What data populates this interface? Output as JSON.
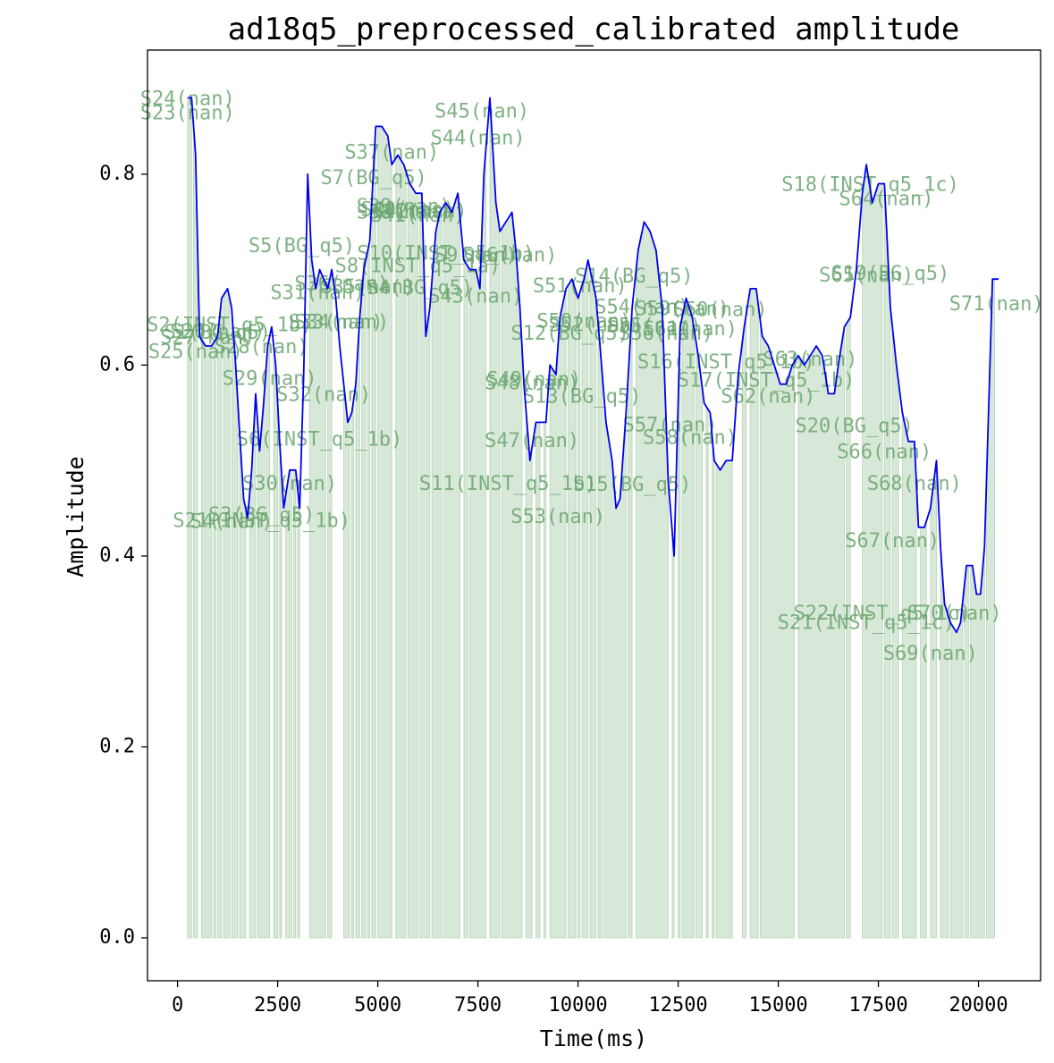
{
  "chart_data": {
    "type": "line",
    "title": "ad18q5_preprocessed_calibrated amplitude",
    "xlabel": "Time(ms)",
    "ylabel": "Amplitude",
    "xlim": [
      -750,
      21550
    ],
    "ylim": [
      -0.045,
      0.93
    ],
    "x_ticks": [
      0,
      2500,
      5000,
      7500,
      10000,
      12500,
      15000,
      17500,
      20000
    ],
    "y_ticks": [
      0.0,
      0.2,
      0.4,
      0.6,
      0.8
    ],
    "y_tick_labels": [
      "0.0",
      "0.2",
      "0.4",
      "0.6",
      "0.8"
    ],
    "grid": false,
    "colors": {
      "line": "#0000ee",
      "segment_fill": "#8fbc8f",
      "segment_label": "#6aa56e"
    },
    "series": [
      {
        "points": [
          [
            250,
            0.88
          ],
          [
            350,
            0.88
          ],
          [
            450,
            0.82
          ],
          [
            550,
            0.63
          ],
          [
            700,
            0.62
          ],
          [
            850,
            0.62
          ],
          [
            1000,
            0.63
          ],
          [
            1100,
            0.67
          ],
          [
            1250,
            0.68
          ],
          [
            1350,
            0.66
          ],
          [
            1450,
            0.6
          ],
          [
            1550,
            0.53
          ],
          [
            1650,
            0.46
          ],
          [
            1750,
            0.44
          ],
          [
            1850,
            0.49
          ],
          [
            1950,
            0.57
          ],
          [
            2050,
            0.51
          ],
          [
            2150,
            0.56
          ],
          [
            2250,
            0.62
          ],
          [
            2350,
            0.64
          ],
          [
            2450,
            0.6
          ],
          [
            2550,
            0.52
          ],
          [
            2650,
            0.45
          ],
          [
            2800,
            0.49
          ],
          [
            2950,
            0.49
          ],
          [
            3050,
            0.45
          ],
          [
            3150,
            0.59
          ],
          [
            3250,
            0.8
          ],
          [
            3350,
            0.71
          ],
          [
            3450,
            0.68
          ],
          [
            3550,
            0.7
          ],
          [
            3650,
            0.69
          ],
          [
            3750,
            0.68
          ],
          [
            3850,
            0.7
          ],
          [
            3950,
            0.67
          ],
          [
            4050,
            0.62
          ],
          [
            4150,
            0.58
          ],
          [
            4250,
            0.54
          ],
          [
            4350,
            0.55
          ],
          [
            4450,
            0.58
          ],
          [
            4550,
            0.65
          ],
          [
            4650,
            0.7
          ],
          [
            4800,
            0.73
          ],
          [
            4950,
            0.85
          ],
          [
            5100,
            0.85
          ],
          [
            5250,
            0.84
          ],
          [
            5350,
            0.81
          ],
          [
            5500,
            0.82
          ],
          [
            5650,
            0.81
          ],
          [
            5800,
            0.79
          ],
          [
            5950,
            0.78
          ],
          [
            6100,
            0.78
          ],
          [
            6200,
            0.63
          ],
          [
            6300,
            0.66
          ],
          [
            6450,
            0.74
          ],
          [
            6550,
            0.76
          ],
          [
            6700,
            0.77
          ],
          [
            6850,
            0.76
          ],
          [
            7000,
            0.78
          ],
          [
            7150,
            0.71
          ],
          [
            7300,
            0.7
          ],
          [
            7450,
            0.7
          ],
          [
            7550,
            0.68
          ],
          [
            7650,
            0.8
          ],
          [
            7800,
            0.88
          ],
          [
            7950,
            0.77
          ],
          [
            8050,
            0.74
          ],
          [
            8200,
            0.75
          ],
          [
            8350,
            0.76
          ],
          [
            8450,
            0.72
          ],
          [
            8550,
            0.66
          ],
          [
            8650,
            0.58
          ],
          [
            8800,
            0.5
          ],
          [
            8950,
            0.54
          ],
          [
            9100,
            0.54
          ],
          [
            9200,
            0.54
          ],
          [
            9300,
            0.6
          ],
          [
            9450,
            0.59
          ],
          [
            9550,
            0.65
          ],
          [
            9700,
            0.68
          ],
          [
            9850,
            0.69
          ],
          [
            10000,
            0.67
          ],
          [
            10150,
            0.69
          ],
          [
            10250,
            0.71
          ],
          [
            10350,
            0.69
          ],
          [
            10450,
            0.67
          ],
          [
            10550,
            0.62
          ],
          [
            10700,
            0.54
          ],
          [
            10850,
            0.5
          ],
          [
            10950,
            0.45
          ],
          [
            11050,
            0.46
          ],
          [
            11200,
            0.55
          ],
          [
            11350,
            0.66
          ],
          [
            11500,
            0.72
          ],
          [
            11650,
            0.75
          ],
          [
            11800,
            0.74
          ],
          [
            11950,
            0.72
          ],
          [
            12100,
            0.66
          ],
          [
            12250,
            0.48
          ],
          [
            12400,
            0.4
          ],
          [
            12550,
            0.64
          ],
          [
            12700,
            0.67
          ],
          [
            12850,
            0.65
          ],
          [
            13000,
            0.61
          ],
          [
            13150,
            0.56
          ],
          [
            13300,
            0.55
          ],
          [
            13400,
            0.5
          ],
          [
            13550,
            0.49
          ],
          [
            13700,
            0.5
          ],
          [
            13850,
            0.5
          ],
          [
            14000,
            0.59
          ],
          [
            14150,
            0.64
          ],
          [
            14300,
            0.68
          ],
          [
            14450,
            0.68
          ],
          [
            14600,
            0.63
          ],
          [
            14750,
            0.62
          ],
          [
            14900,
            0.6
          ],
          [
            15050,
            0.58
          ],
          [
            15200,
            0.58
          ],
          [
            15350,
            0.6
          ],
          [
            15500,
            0.61
          ],
          [
            15650,
            0.6
          ],
          [
            15800,
            0.61
          ],
          [
            15950,
            0.62
          ],
          [
            16100,
            0.61
          ],
          [
            16250,
            0.57
          ],
          [
            16400,
            0.57
          ],
          [
            16500,
            0.6
          ],
          [
            16650,
            0.64
          ],
          [
            16800,
            0.65
          ],
          [
            16950,
            0.7
          ],
          [
            17100,
            0.78
          ],
          [
            17200,
            0.81
          ],
          [
            17350,
            0.77
          ],
          [
            17500,
            0.79
          ],
          [
            17650,
            0.79
          ],
          [
            17800,
            0.66
          ],
          [
            17950,
            0.6
          ],
          [
            18100,
            0.55
          ],
          [
            18250,
            0.52
          ],
          [
            18400,
            0.52
          ],
          [
            18500,
            0.43
          ],
          [
            18650,
            0.43
          ],
          [
            18800,
            0.45
          ],
          [
            18950,
            0.5
          ],
          [
            19050,
            0.41
          ],
          [
            19150,
            0.35
          ],
          [
            19300,
            0.33
          ],
          [
            19450,
            0.32
          ],
          [
            19550,
            0.33
          ],
          [
            19700,
            0.39
          ],
          [
            19850,
            0.39
          ],
          [
            19950,
            0.36
          ],
          [
            20050,
            0.36
          ],
          [
            20150,
            0.41
          ],
          [
            20350,
            0.69
          ],
          [
            20500,
            0.69
          ]
        ]
      }
    ],
    "segments": [
      [
        250,
        350
      ],
      [
        400,
        500
      ],
      [
        600,
        850
      ],
      [
        900,
        950
      ],
      [
        1000,
        1100
      ],
      [
        1150,
        1300
      ],
      [
        1350,
        1500
      ],
      [
        1550,
        1700
      ],
      [
        1800,
        1950
      ],
      [
        2000,
        2300
      ],
      [
        2400,
        2500
      ],
      [
        2550,
        2600
      ],
      [
        2700,
        2850
      ],
      [
        2900,
        2950
      ],
      [
        3000,
        3050
      ],
      [
        3300,
        3700
      ],
      [
        3750,
        3850
      ],
      [
        4150,
        4300
      ],
      [
        4350,
        4400
      ],
      [
        4450,
        4550
      ],
      [
        4600,
        4700
      ],
      [
        4750,
        4800
      ],
      [
        4850,
        4950
      ],
      [
        5000,
        5350
      ],
      [
        5450,
        5700
      ],
      [
        5750,
        6000
      ],
      [
        6050,
        6300
      ],
      [
        6350,
        6600
      ],
      [
        6650,
        7050
      ],
      [
        7150,
        7250
      ],
      [
        7300,
        7700
      ],
      [
        7800,
        8050
      ],
      [
        8100,
        8600
      ],
      [
        8700,
        8850
      ],
      [
        8950,
        9050
      ],
      [
        9150,
        9200
      ],
      [
        9300,
        9700
      ],
      [
        9750,
        9950
      ],
      [
        10000,
        10050
      ],
      [
        10100,
        10250
      ],
      [
        10300,
        10450
      ],
      [
        10500,
        10600
      ],
      [
        10650,
        11200
      ],
      [
        11250,
        11350
      ],
      [
        11450,
        12250
      ],
      [
        12350,
        12400
      ],
      [
        12500,
        12550
      ],
      [
        12600,
        12900
      ],
      [
        12950,
        13100
      ],
      [
        13200,
        13250
      ],
      [
        13350,
        13400
      ],
      [
        13450,
        13850
      ],
      [
        14100,
        14200
      ],
      [
        14300,
        14500
      ],
      [
        14550,
        15400
      ],
      [
        15500,
        16650
      ],
      [
        16700,
        16800
      ],
      [
        17100,
        17600
      ],
      [
        17650,
        17800
      ],
      [
        17850,
        18000
      ],
      [
        18100,
        18450
      ],
      [
        18550,
        18700
      ],
      [
        18800,
        18950
      ],
      [
        19050,
        19250
      ],
      [
        19300,
        19600
      ],
      [
        19650,
        19750
      ],
      [
        19800,
        20150
      ],
      [
        20200,
        20400
      ]
    ],
    "segment_labels": [
      {
        "text": "S24(nan)",
        "x": 250,
        "y": 0.878
      },
      {
        "text": "S23(nan)",
        "x": 250,
        "y": 0.863
      },
      {
        "text": "S45(nan)",
        "x": 7600,
        "y": 0.865
      },
      {
        "text": "S44(nan)",
        "x": 7500,
        "y": 0.837
      },
      {
        "text": "S37(nan)",
        "x": 5350,
        "y": 0.822
      },
      {
        "text": "S7(BG_q5)",
        "x": 4900,
        "y": 0.795
      },
      {
        "text": "S18(INST_q5_1c)",
        "x": 17300,
        "y": 0.788
      },
      {
        "text": "S64(nan)",
        "x": 17700,
        "y": 0.773
      },
      {
        "text": "S39(nan)",
        "x": 5650,
        "y": 0.765
      },
      {
        "text": "S40(nan)",
        "x": 5750,
        "y": 0.762
      },
      {
        "text": "S38(nan)",
        "x": 5650,
        "y": 0.759
      },
      {
        "text": "S42(nan)",
        "x": 6050,
        "y": 0.76
      },
      {
        "text": "S41(nan)",
        "x": 6000,
        "y": 0.756
      },
      {
        "text": "S5(BG_q5)",
        "x": 3100,
        "y": 0.724
      },
      {
        "text": "S10(INST_q5_1b)",
        "x": 6700,
        "y": 0.716
      },
      {
        "text": "S9(nan)",
        "x": 7450,
        "y": 0.714
      },
      {
        "text": "S46(nan)",
        "x": 8300,
        "y": 0.714
      },
      {
        "text": "S8(INST_q5_1a)",
        "x": 6000,
        "y": 0.703
      },
      {
        "text": "S19(BG_q5)",
        "x": 17800,
        "y": 0.695
      },
      {
        "text": "S65(nan)",
        "x": 17200,
        "y": 0.693
      },
      {
        "text": "S14(BG_q5)",
        "x": 11400,
        "y": 0.692
      },
      {
        "text": "S36(nan)",
        "x": 4100,
        "y": 0.684
      },
      {
        "text": "S51(nan)",
        "x": 10050,
        "y": 0.682
      },
      {
        "text": "S35(nan)",
        "x": 4750,
        "y": 0.681
      },
      {
        "text": "S4(BG_q5)",
        "x": 6050,
        "y": 0.68
      },
      {
        "text": "S31(nan)",
        "x": 3500,
        "y": 0.675
      },
      {
        "text": "S43(nan)",
        "x": 7450,
        "y": 0.671
      },
      {
        "text": "S71(nan)",
        "x": 20450,
        "y": 0.663
      },
      {
        "text": "S54(nan)",
        "x": 11600,
        "y": 0.66
      },
      {
        "text": "S59(nan)",
        "x": 12600,
        "y": 0.658
      },
      {
        "text": "S60(nan)",
        "x": 13550,
        "y": 0.657
      },
      {
        "text": "S33(nan)",
        "x": 3950,
        "y": 0.644
      },
      {
        "text": "S34(nan)",
        "x": 4100,
        "y": 0.644
      },
      {
        "text": "S50(nan)",
        "x": 10150,
        "y": 0.645
      },
      {
        "text": "S2(INST_q5_1b)",
        "x": 1300,
        "y": 0.641
      },
      {
        "text": "S52(nan)",
        "x": 10450,
        "y": 0.641
      },
      {
        "text": "S55(nan)",
        "x": 11900,
        "y": 0.64
      },
      {
        "text": "S61(nan)",
        "x": 12800,
        "y": 0.637
      },
      {
        "text": "S26(nan)",
        "x": 1000,
        "y": 0.634
      },
      {
        "text": "S1(BG_q5)",
        "x": 1000,
        "y": 0.633
      },
      {
        "text": "S12(BG_q5)",
        "x": 9800,
        "y": 0.632
      },
      {
        "text": "S56(nan)",
        "x": 12200,
        "y": 0.632
      },
      {
        "text": "S27(nan)",
        "x": 750,
        "y": 0.628
      },
      {
        "text": "S28(nan)",
        "x": 2100,
        "y": 0.618
      },
      {
        "text": "S25(nan)",
        "x": 450,
        "y": 0.613
      },
      {
        "text": "S63(nan)",
        "x": 15800,
        "y": 0.605
      },
      {
        "text": "S16(INST_q5_1b)",
        "x": 13700,
        "y": 0.602
      },
      {
        "text": "S29(nan)",
        "x": 2300,
        "y": 0.585
      },
      {
        "text": "S17(INST_q5_1b)",
        "x": 14700,
        "y": 0.583
      },
      {
        "text": "S49(nan)",
        "x": 8900,
        "y": 0.584
      },
      {
        "text": "S48(nan)",
        "x": 8850,
        "y": 0.58
      },
      {
        "text": "S13(BG_q5)",
        "x": 10100,
        "y": 0.566
      },
      {
        "text": "S32(nan)",
        "x": 3650,
        "y": 0.568
      },
      {
        "text": "S62(nan)",
        "x": 14750,
        "y": 0.566
      },
      {
        "text": "S57(nan)",
        "x": 12300,
        "y": 0.536
      },
      {
        "text": "S20(BG_q5)",
        "x": 16900,
        "y": 0.535
      },
      {
        "text": "S58(nan)",
        "x": 12800,
        "y": 0.523
      },
      {
        "text": "S47(nan)",
        "x": 8850,
        "y": 0.52
      },
      {
        "text": "S6(INST_q5_1b)",
        "x": 3550,
        "y": 0.521
      },
      {
        "text": "S66(nan)",
        "x": 17650,
        "y": 0.508
      },
      {
        "text": "S30(nan)",
        "x": 2800,
        "y": 0.475
      },
      {
        "text": "S11(INST_q5_1b)",
        "x": 8250,
        "y": 0.475
      },
      {
        "text": "S15(BG_q5)",
        "x": 11350,
        "y": 0.474
      },
      {
        "text": "S68(nan)",
        "x": 18400,
        "y": 0.475
      },
      {
        "text": "S53(nan)",
        "x": 9500,
        "y": 0.44
      },
      {
        "text": "S3(BG_q5)",
        "x": 2100,
        "y": 0.442
      },
      {
        "text": "S21(INST_q5_1b)",
        "x": 2100,
        "y": 0.436
      },
      {
        "text": "S4(nan)",
        "x": 1350,
        "y": 0.435
      },
      {
        "text": "S67(nan)",
        "x": 17850,
        "y": 0.415
      },
      {
        "text": "S22(INST_q5_1c)",
        "x": 17600,
        "y": 0.339
      },
      {
        "text": "S70(nan)",
        "x": 19400,
        "y": 0.339
      },
      {
        "text": "S21(INST_q5_1c)",
        "x": 17200,
        "y": 0.329
      },
      {
        "text": "S69(nan)",
        "x": 18800,
        "y": 0.297
      }
    ]
  }
}
